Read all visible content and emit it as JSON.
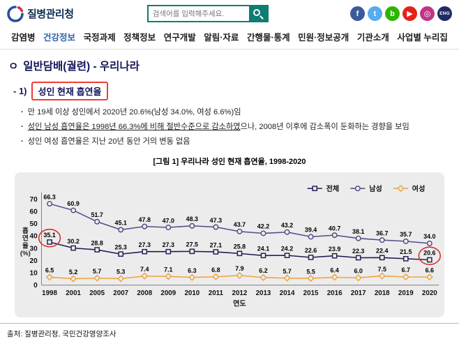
{
  "header": {
    "logo_text": "질병관리청",
    "search": {
      "placeholder": "검색어를 입력해주세요."
    },
    "social_icons": [
      {
        "name": "facebook-icon",
        "glyph": "f",
        "color": "#3b5a9a"
      },
      {
        "name": "twitter-icon",
        "glyph": "t",
        "color": "#55acee"
      },
      {
        "name": "blog-icon",
        "glyph": "b",
        "color": "#2db400"
      },
      {
        "name": "youtube-icon",
        "glyph": "▶",
        "color": "#e62117"
      },
      {
        "name": "instagram-icon",
        "glyph": "◎",
        "color": "#c13584"
      },
      {
        "name": "eng-icon",
        "glyph": "ENG",
        "color": "#1f2b63"
      }
    ]
  },
  "nav": {
    "items": [
      {
        "label": "감염병",
        "active": false
      },
      {
        "label": "건강정보",
        "active": true
      },
      {
        "label": "국정과제",
        "active": false
      },
      {
        "label": "정책정보",
        "active": false
      },
      {
        "label": "연구개발",
        "active": false
      },
      {
        "label": "알림·자료",
        "active": false
      },
      {
        "label": "간행물·통계",
        "active": false
      },
      {
        "label": "민원·정보공개",
        "active": false
      },
      {
        "label": "기관소개",
        "active": false
      },
      {
        "label": "사업별 누리집",
        "active": false
      }
    ]
  },
  "content": {
    "title_marker": "ㅇ",
    "page_title": "일반담배(궐련) - 우리나라",
    "section_prefix": "- 1)",
    "section_box_text": "성인 현재 흡연율",
    "bullet_char": "·",
    "bullets": [
      {
        "segments": [
          {
            "text": "만 19세 이상 성인에서 2020년 20.6%(남성 34.0%, 여성 6.6%)임",
            "underline": false
          }
        ]
      },
      {
        "segments": [
          {
            "text": "성인 남성 흡연율은 1998년 66.3%에 비해 절반수준으로 감소하였",
            "underline": true
          },
          {
            "text": "으나, 2008년 이후에 감소폭이 둔화하는 경향을 보임",
            "underline": false
          }
        ]
      },
      {
        "segments": [
          {
            "text": "성인 여성 흡연율은 지난 20년 동안 거의 변동 없음",
            "underline": false
          }
        ]
      }
    ],
    "figure_caption": "[그림 1] 우리나라 성인 현재 흡연율, 1998-2020"
  },
  "chart_data": {
    "type": "line",
    "title": "[그림 1] 우리나라 성인 현재 흡연율, 1998-2020",
    "categories": [
      "1998",
      "2001",
      "2005",
      "2007",
      "2008",
      "2009",
      "2010",
      "2011",
      "2012",
      "2013",
      "2014",
      "2015",
      "2016",
      "2017",
      "2018",
      "2019",
      "2020"
    ],
    "series": [
      {
        "name": "전체",
        "marker": "square",
        "color": "#1c1c52",
        "values": [
          35.1,
          30.2,
          28.8,
          25.3,
          27.3,
          27.3,
          27.5,
          27.1,
          25.8,
          24.1,
          24.2,
          22.6,
          23.9,
          22.3,
          22.4,
          21.5,
          20.6
        ]
      },
      {
        "name": "남성",
        "marker": "circle",
        "color": "#4d4d87",
        "values": [
          66.3,
          60.9,
          51.7,
          45.1,
          47.8,
          47.0,
          48.3,
          47.3,
          43.7,
          42.2,
          43.2,
          39.4,
          40.7,
          38.1,
          36.7,
          35.7,
          34.0
        ]
      },
      {
        "name": "여성",
        "marker": "diamond",
        "color": "#efa23c",
        "values": [
          6.5,
          5.2,
          5.7,
          5.3,
          7.4,
          7.1,
          6.3,
          6.8,
          7.9,
          6.2,
          5.7,
          5.5,
          6.4,
          6.0,
          7.5,
          6.7,
          6.6
        ]
      }
    ],
    "xlabel": "연도",
    "ylabel": "흡연율(%)",
    "ylim": [
      0,
      70
    ],
    "yticks": [
      0,
      10,
      20,
      30,
      40,
      50,
      60,
      70
    ],
    "grid": false,
    "legend_position": "top-right",
    "background": "#ececec",
    "annotations": [
      {
        "type": "ellipse",
        "series": "전체",
        "index": 0,
        "color": "#d92b2b"
      },
      {
        "type": "ellipse",
        "series": "전체",
        "index": 16,
        "color": "#d92b2b"
      }
    ]
  },
  "footer": {
    "source": "출처: 질병관리청, 국민건강영양조사"
  }
}
